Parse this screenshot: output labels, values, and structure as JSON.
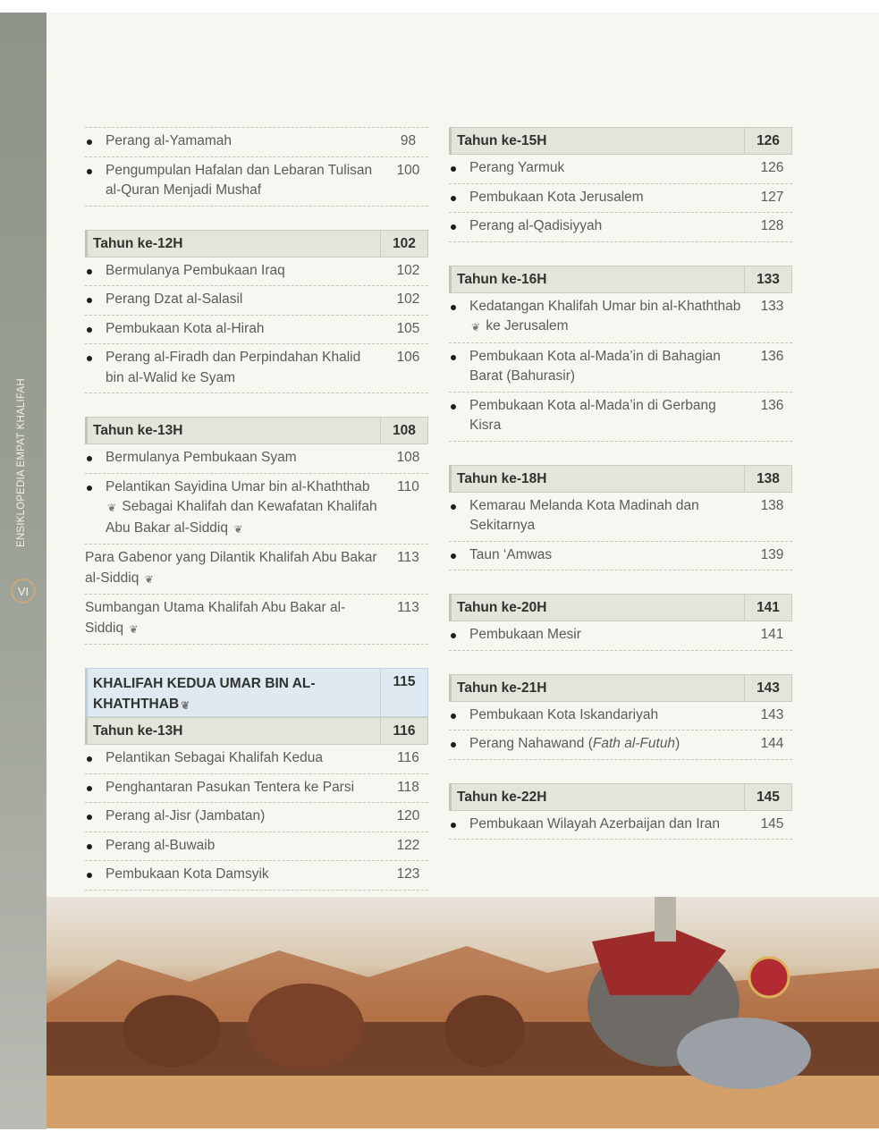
{
  "spine": {
    "title": "ENSIKLOPEDIA EMPAT KHALIFAH",
    "folio": "VI"
  },
  "colors": {
    "header_bg": "#e3e5dc",
    "chapter_header_bg": "#dfe9f1",
    "divider": "#cdbfb3"
  },
  "left": [
    {
      "topline": true,
      "headers": [],
      "items": [
        {
          "bullet": true,
          "text": [
            {
              "t": "Perang al-Yamamah"
            }
          ],
          "page": "98"
        },
        {
          "bullet": true,
          "text": [
            {
              "t": "Pengumpulan Hafalan dan Lebaran Tulisan al-Quran Menjadi Mushaf"
            }
          ],
          "page": "100"
        }
      ]
    },
    {
      "headers": [
        {
          "title": "Tahun ke-12H",
          "page": "102"
        }
      ],
      "items": [
        {
          "bullet": true,
          "text": [
            {
              "t": "Bermulanya Pembukaan Iraq"
            }
          ],
          "page": "102"
        },
        {
          "bullet": true,
          "text": [
            {
              "t": "Perang Dzat al-Salasil"
            }
          ],
          "page": "102"
        },
        {
          "bullet": true,
          "text": [
            {
              "t": "Pembukaan Kota al-Hirah"
            }
          ],
          "page": "105"
        },
        {
          "bullet": true,
          "text": [
            {
              "t": "Perang al-Firadh dan Perpindahan Khalid bin al-Walid ke Syam"
            }
          ],
          "page": "106"
        }
      ]
    },
    {
      "headers": [
        {
          "title": "Tahun ke-13H",
          "page": "108"
        }
      ],
      "items": [
        {
          "bullet": true,
          "text": [
            {
              "t": "Bermulanya Pembukaan Syam"
            }
          ],
          "page": "108"
        },
        {
          "bullet": true,
          "text": [
            {
              "t": "Pelantikan Sayidina Umar bin al-Khaththab "
            },
            {
              "icon": "honorific"
            },
            {
              "t": " Sebagai Khalifah dan Kewafatan Khalifah Abu Bakar al-Siddiq "
            },
            {
              "icon": "honorific"
            }
          ],
          "page": "110"
        },
        {
          "bullet": false,
          "text": [
            {
              "t": "Para Gabenor yang Dilantik Khalifah Abu Bakar al-Siddiq "
            },
            {
              "icon": "honorific"
            }
          ],
          "page": "113"
        },
        {
          "bullet": false,
          "text": [
            {
              "t": "Sumbangan Utama Khalifah Abu Bakar al-Siddiq "
            },
            {
              "icon": "honorific"
            }
          ],
          "page": "113"
        }
      ]
    },
    {
      "headers": [
        {
          "title": "KHALIFAH KEDUA UMAR BIN AL-KHATHTHAB",
          "page": "115",
          "style": "chapter",
          "honorific": true
        },
        {
          "title": "Tahun ke-13H",
          "page": "116"
        }
      ],
      "items": [
        {
          "bullet": true,
          "text": [
            {
              "t": "Pelantikan Sebagai Khalifah Kedua"
            }
          ],
          "page": "116"
        },
        {
          "bullet": true,
          "text": [
            {
              "t": "Penghantaran Pasukan Tentera ke Parsi"
            }
          ],
          "page": "118"
        },
        {
          "bullet": true,
          "text": [
            {
              "t": "Perang al-Jisr (Jambatan)"
            }
          ],
          "page": "120"
        },
        {
          "bullet": true,
          "text": [
            {
              "t": "Perang al-Buwaib"
            }
          ],
          "page": "122"
        },
        {
          "bullet": true,
          "text": [
            {
              "t": "Pembukaan Kota Damsyik"
            }
          ],
          "page": "123"
        }
      ]
    }
  ],
  "right": [
    {
      "headers": [
        {
          "title": "Tahun ke-15H",
          "page": "126"
        }
      ],
      "items": [
        {
          "bullet": true,
          "text": [
            {
              "t": "Perang Yarmuk"
            }
          ],
          "page": "126"
        },
        {
          "bullet": true,
          "text": [
            {
              "t": "Pembukaan Kota Jerusalem"
            }
          ],
          "page": "127"
        },
        {
          "bullet": true,
          "text": [
            {
              "t": "Perang al-Qadisiyyah"
            }
          ],
          "page": "128"
        }
      ]
    },
    {
      "headers": [
        {
          "title": "Tahun ke-16H",
          "page": "133"
        }
      ],
      "items": [
        {
          "bullet": true,
          "text": [
            {
              "t": "Kedatangan Khalifah Umar bin al-Khaththab "
            },
            {
              "icon": "honorific"
            },
            {
              "t": " ke Jerusalem"
            }
          ],
          "page": "133"
        },
        {
          "bullet": true,
          "text": [
            {
              "t": "Pembukaan Kota al-Mada’in di Bahagian Barat (Bahurasir)"
            }
          ],
          "page": "136"
        },
        {
          "bullet": true,
          "text": [
            {
              "t": "Pembukaan Kota al-Mada’in di Gerbang Kisra"
            }
          ],
          "page": "136"
        }
      ]
    },
    {
      "headers": [
        {
          "title": "Tahun ke-18H",
          "page": "138"
        }
      ],
      "items": [
        {
          "bullet": true,
          "text": [
            {
              "t": "Kemarau Melanda Kota Madinah dan Sekitarnya"
            }
          ],
          "page": "138"
        },
        {
          "bullet": true,
          "text": [
            {
              "t": "Taun ‘Amwas"
            }
          ],
          "page": "139"
        }
      ]
    },
    {
      "headers": [
        {
          "title": "Tahun ke-20H",
          "page": "141"
        }
      ],
      "items": [
        {
          "bullet": true,
          "text": [
            {
              "t": "Pembukaan Mesir"
            }
          ],
          "page": "141"
        }
      ]
    },
    {
      "headers": [
        {
          "title": "Tahun ke-21H",
          "page": "143"
        }
      ],
      "items": [
        {
          "bullet": true,
          "text": [
            {
              "t": "Pembukaan Kota Iskandariyah"
            }
          ],
          "page": "143"
        },
        {
          "bullet": true,
          "text": [
            {
              "t": "Perang Nahawand ("
            },
            {
              "t": "Fath al-Futuh",
              "italic": true
            },
            {
              "t": ")"
            }
          ],
          "page": "144"
        }
      ]
    },
    {
      "headers": [
        {
          "title": "Tahun ke-22H",
          "page": "145"
        }
      ],
      "items": [
        {
          "bullet": true,
          "text": [
            {
              "t": "Pembukaan Wilayah Azerbaijan dan Iran"
            }
          ],
          "page": "145"
        }
      ]
    }
  ],
  "illustration": {
    "subject": "army-with-war-elephants-desert"
  }
}
